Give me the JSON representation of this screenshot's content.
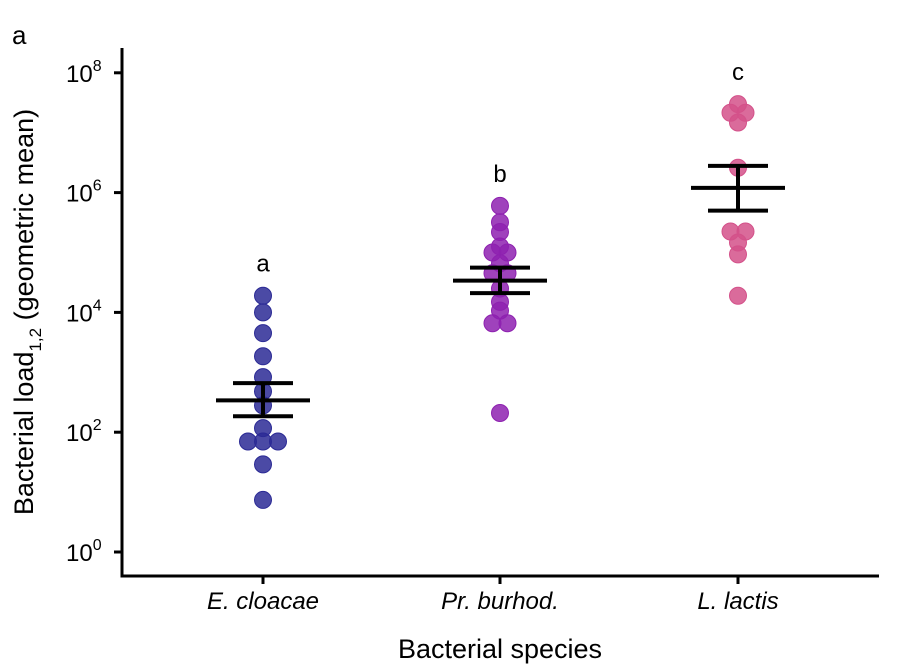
{
  "chart_data": {
    "type": "scatter",
    "subtype": "dot-plot with geometric mean and SE error bars",
    "panel_label": "a",
    "title": "",
    "xlabel": "Bacterial species",
    "ylabel": {
      "main": "Bacterial load",
      "subscript": "1,2",
      "suffix": " (geometric mean)"
    },
    "yscale": "log10",
    "ylim_log10": [
      -0.4,
      8.4
    ],
    "yticks": [
      {
        "base": "10",
        "exp": "0",
        "log10": 0
      },
      {
        "base": "10",
        "exp": "2",
        "log10": 2
      },
      {
        "base": "10",
        "exp": "4",
        "log10": 4
      },
      {
        "base": "10",
        "exp": "6",
        "log10": 6
      },
      {
        "base": "10",
        "exp": "8",
        "log10": 8
      }
    ],
    "grid": false,
    "legend": "none",
    "categories": [
      "E. cloacae",
      "Pr. burhod.",
      "L. lactis"
    ],
    "series": [
      {
        "name": "E. cloacae",
        "color": "#2b2a95",
        "significance_letter": "a",
        "values": [
          19000,
          10000,
          4500,
          1850,
          830,
          480,
          280,
          117,
          70,
          70,
          70,
          29,
          7.4
        ],
        "offsets": [
          0,
          0,
          0,
          0,
          0,
          0,
          0,
          0,
          -1,
          0,
          1,
          0,
          0
        ],
        "geo_mean": 340,
        "error_upper": 660,
        "error_lower": 185
      },
      {
        "name": "Pr. burhod.",
        "color": "#8e21b0",
        "significance_letter": "b",
        "values": [
          600000,
          320000,
          220000,
          126000,
          100000,
          100000,
          66000,
          45000,
          45000,
          25000,
          15000,
          10700,
          6600,
          6600,
          209
        ],
        "offsets": [
          0,
          0,
          0,
          0,
          -0.5,
          0.5,
          0,
          -0.5,
          0.5,
          0,
          0,
          0,
          -0.5,
          0.5,
          0
        ],
        "geo_mean": 34000,
        "error_upper": 56000,
        "error_lower": 21000
      },
      {
        "name": "L. lactis",
        "color": "#d4518a",
        "significance_letter": "c",
        "values": [
          30000000,
          21500000,
          21500000,
          14800000,
          2600000,
          224000,
          224000,
          147000,
          93000,
          19000
        ],
        "offsets": [
          0,
          -0.5,
          0.5,
          0,
          0,
          -0.5,
          0.5,
          0,
          0,
          0
        ],
        "geo_mean": 1200000,
        "error_upper": 2800000,
        "error_lower": 500000
      }
    ]
  }
}
